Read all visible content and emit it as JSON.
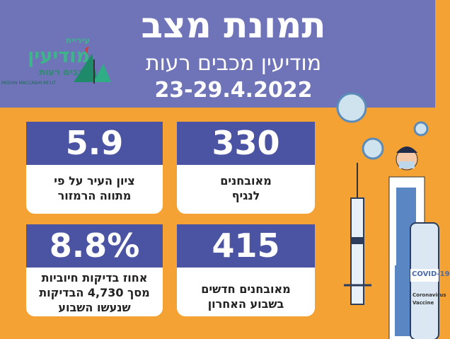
{
  "header": {
    "title": "תמונת מצב",
    "subtitle": "מודיעין מכבים רעות",
    "date": "23-29.4.2022"
  },
  "logo": {
    "line1": "עיריית",
    "line2": "מודיעין",
    "line3": "מכבים רעות",
    "line4": "MODIIN MACCABIM RE'UT"
  },
  "cards": [
    {
      "value": "5.9",
      "label1": "ציון העיר על פי",
      "label2": "מתווה הרמזור"
    },
    {
      "value": "330",
      "label1": "מאובחנים",
      "label2": "לנגיף"
    },
    {
      "value": "8.8%",
      "label1": "אחוז בדיקות חיוביות",
      "label2": "מסך 4,730 הבדיקות",
      "label3": "שנעשו השבוע"
    },
    {
      "value": "415",
      "label1": "מאובחנים חדשים",
      "label2": "בשבוע האחרון"
    }
  ],
  "illustration": {
    "vial_label": "COVID-19",
    "vial_text1": "Coronavirus",
    "vial_text2": "Vaccine"
  },
  "colors": {
    "header": "#6f73b7",
    "background": "#f5a234",
    "card_top": "#4b54a3"
  }
}
